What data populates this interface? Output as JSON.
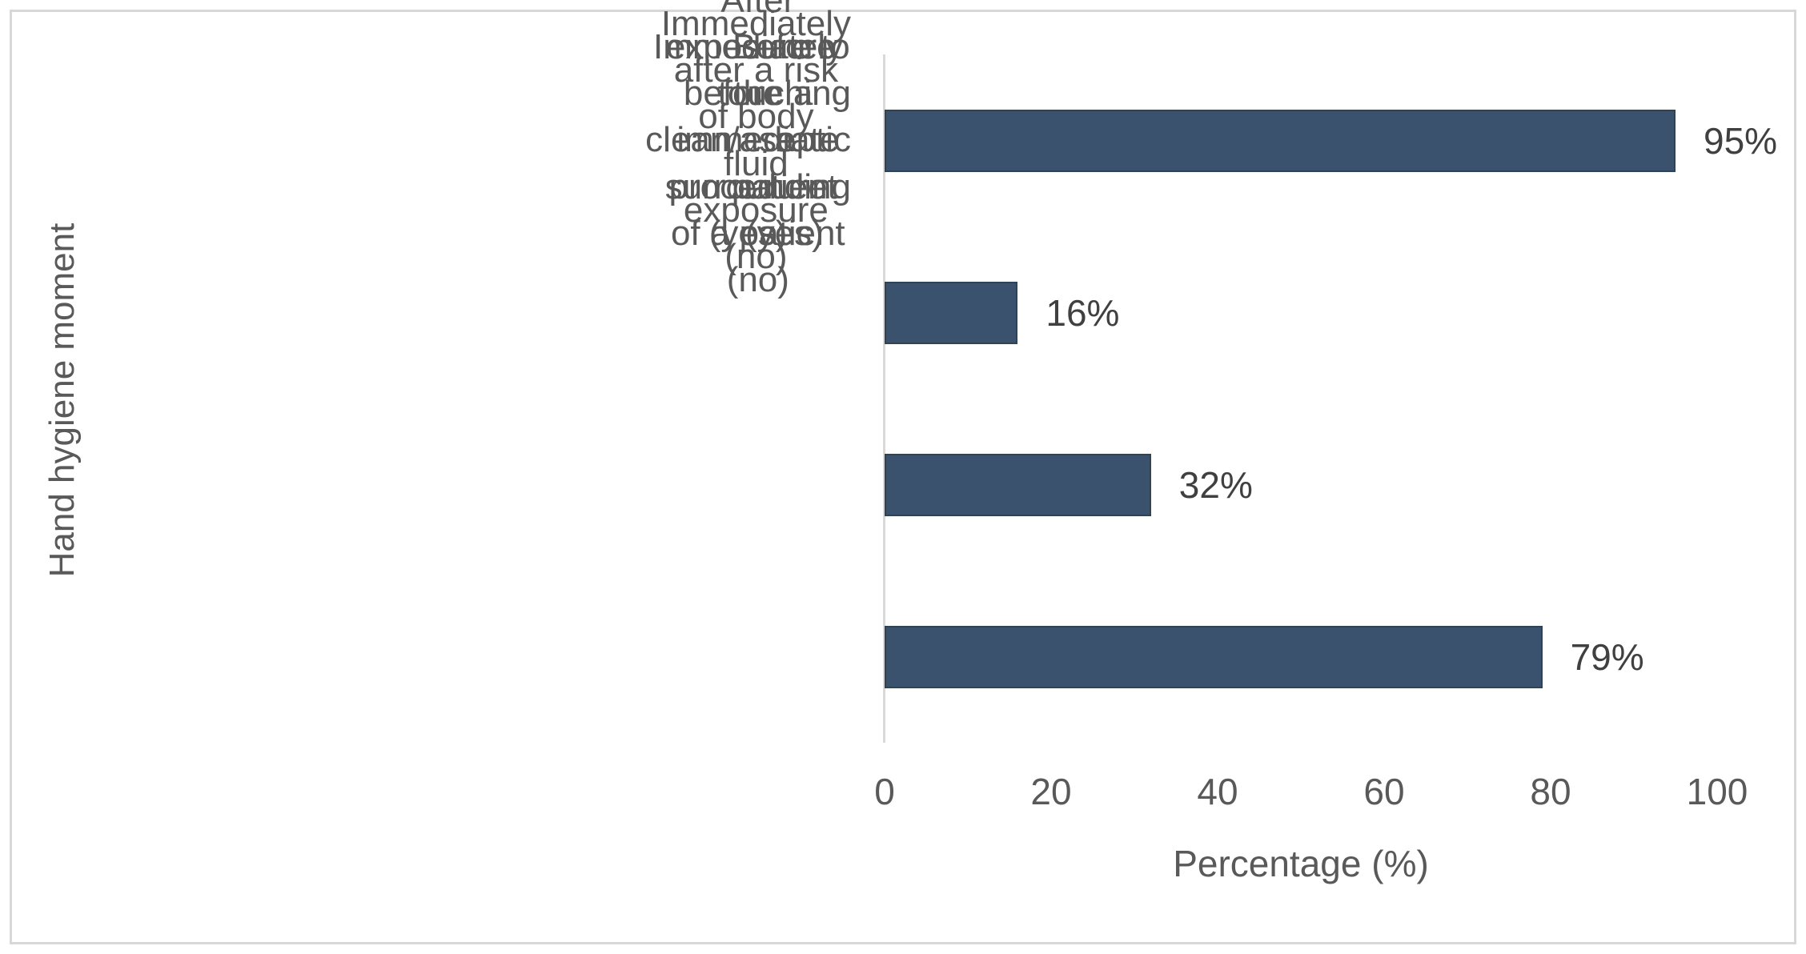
{
  "chart_data": {
    "type": "bar",
    "orientation": "horizontal",
    "title": "",
    "categories": [
      "After exposure to the immediate surrounding of a patient (no)",
      "Immediately after a risk of body fluid exposure (no)",
      "Immediately before a clean/aseptic procedure (yes)",
      "Before touching a patient (yes)"
    ],
    "category_display": [
      "After exposure to the immediate\nsurrounding of a patient (no)",
      "Immediately after a risk of body fluid\nexposure (no)",
      "Immediately before a clean/aseptic\nprocedure (yes)",
      "Before touching a patient (yes)"
    ],
    "values": [
      16,
      32,
      79,
      95
    ],
    "data_labels": [
      "16%",
      "32%",
      "79%",
      "95%"
    ],
    "xlabel": "Percentage (%)",
    "ylabel": "Hand hygiene moment",
    "xlim": [
      0,
      100
    ],
    "xticks": [
      0,
      20,
      40,
      60,
      80,
      100
    ],
    "xtick_labels": [
      "0",
      "20",
      "40",
      "60",
      "80",
      "100"
    ],
    "grid": false,
    "legend": false,
    "bar_color": "#3B526E",
    "bar_border_color": "#2F4256",
    "axis_line_color": "#D9D9D9",
    "frame_border_color": "#D8D8D8",
    "category_text_color": "#595959",
    "tick_text_color": "#595959",
    "value_label_color": "#404040",
    "background_color": "#FFFFFF"
  }
}
